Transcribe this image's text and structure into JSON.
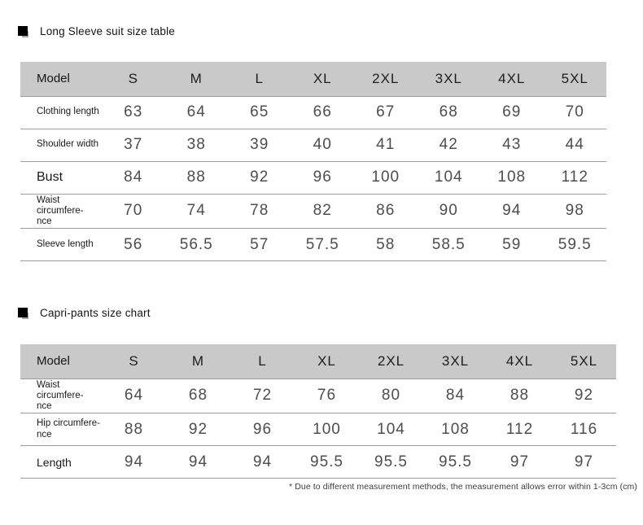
{
  "colors": {
    "header_bg": "#c9c9c9",
    "row_line": "#9c9c9c",
    "number_text": "#4d4d4d",
    "label_text": "#1a1a1a",
    "bullet": "#000000"
  },
  "section1": {
    "bullet_icon": "black-square",
    "title": "Long Sleeve suit size table",
    "table": {
      "columns": [
        "Model",
        "S",
        "M",
        "L",
        "XL",
        "2XL",
        "3XL",
        "4XL",
        "5XL"
      ],
      "rows": [
        {
          "label": "Clothing length",
          "label_size": "sm",
          "values": [
            "63",
            "64",
            "65",
            "66",
            "67",
            "68",
            "69",
            "70"
          ]
        },
        {
          "label": "Shoulder width",
          "label_size": "sm",
          "values": [
            "37",
            "38",
            "39",
            "40",
            "41",
            "42",
            "43",
            "44"
          ]
        },
        {
          "label": "Bust",
          "label_size": "lg",
          "values": [
            "84",
            "88",
            "92",
            "96",
            "100",
            "104",
            "108",
            "112"
          ]
        },
        {
          "label": "Waist circumfere-\nnce",
          "label_size": "sm",
          "values": [
            "70",
            "74",
            "78",
            "82",
            "86",
            "90",
            "94",
            "98"
          ]
        },
        {
          "label": "Sleeve length",
          "label_size": "sm",
          "values": [
            "56",
            "56.5",
            "57",
            "57.5",
            "58",
            "58.5",
            "59",
            "59.5"
          ]
        }
      ]
    }
  },
  "section2": {
    "bullet_icon": "black-square",
    "title": "Capri-pants size chart",
    "table": {
      "columns": [
        "Model",
        "S",
        "M",
        "L",
        "XL",
        "2XL",
        "3XL",
        "4XL",
        "5XL"
      ],
      "rows": [
        {
          "label": "Waist circumfere-\nnce",
          "label_size": "sm",
          "values": [
            "64",
            "68",
            "72",
            "76",
            "80",
            "84",
            "88",
            "92"
          ]
        },
        {
          "label": "Hip circumfere-\nnce",
          "label_size": "sm",
          "values": [
            "88",
            "92",
            "96",
            "100",
            "104",
            "108",
            "112",
            "116"
          ]
        },
        {
          "label": "Length",
          "label_size": "md",
          "values": [
            "94",
            "94",
            "94",
            "95.5",
            "95.5",
            "95.5",
            "97",
            "97"
          ]
        }
      ]
    }
  },
  "footnote": "* Due to different measurement methods, the measurement allows error within 1-3cm (cm)"
}
